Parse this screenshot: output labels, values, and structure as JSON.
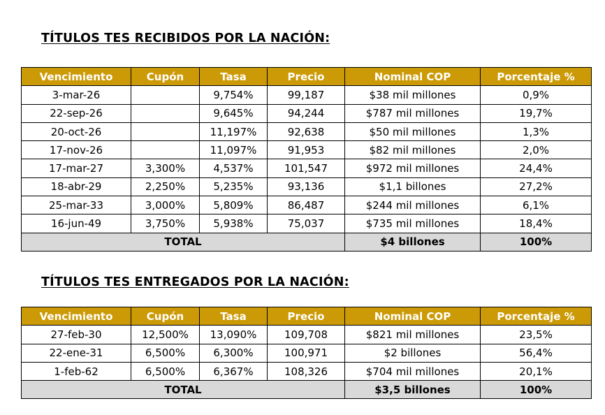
{
  "recibidos": {
    "title": "TÍTULOS TES RECIBIDOS POR LA NACIÓN:",
    "headers": [
      "Vencimiento",
      "Cupón",
      "Tasa",
      "Precio",
      "Nominal COP",
      "Porcentaje %"
    ],
    "rows": [
      [
        "3-mar-26",
        "",
        "9,754%",
        "99,187",
        "$38 mil millones",
        "0,9%"
      ],
      [
        "22-sep-26",
        "",
        "9,645%",
        "94,244",
        "$787 mil millones",
        "19,7%"
      ],
      [
        "20-oct-26",
        "",
        "11,197%",
        "92,638",
        "$50 mil millones",
        "1,3%"
      ],
      [
        "17-nov-26",
        "",
        "11,097%",
        "91,953",
        "$82 mil millones",
        "2,0%"
      ],
      [
        "17-mar-27",
        "3,300%",
        "4,537%",
        "101,547",
        "$972 mil millones",
        "24,4%"
      ],
      [
        "18-abr-29",
        "2,250%",
        "5,235%",
        "93,136",
        "$1,1 billones",
        "27,2%"
      ],
      [
        "25-mar-33",
        "3,000%",
        "5,809%",
        "86,487",
        "$244 mil millones",
        "6,1%"
      ],
      [
        "16-jun-49",
        "3,750%",
        "5,938%",
        "75,037",
        "$735 mil millones",
        "18,4%"
      ]
    ],
    "total": {
      "label": "TOTAL",
      "nominal": "$4 billones",
      "porcentaje": "100%"
    }
  },
  "entregados": {
    "title": "TÍTULOS TES ENTREGADOS POR LA NACIÓN:",
    "headers": [
      "Vencimiento",
      "Cupón",
      "Tasa",
      "Precio",
      "Nominal COP",
      "Porcentaje %"
    ],
    "rows": [
      [
        "27-feb-30",
        "12,500%",
        "13,090%",
        "109,708",
        "$821 mil millones",
        "23,5%"
      ],
      [
        "22-ene-31",
        "6,500%",
        "6,300%",
        "100,971",
        "$2 billones",
        "56,4%"
      ],
      [
        "1-feb-62",
        "6,500%",
        "6,367%",
        "108,326",
        "$704 mil millones",
        "20,1%"
      ]
    ],
    "total": {
      "label": "TOTAL",
      "nominal": "$3,5 billones",
      "porcentaje": "100%"
    }
  },
  "colors": {
    "header_bg": "#cc9a06",
    "header_text": "#ffffff",
    "total_bg": "#d9d9d9"
  }
}
